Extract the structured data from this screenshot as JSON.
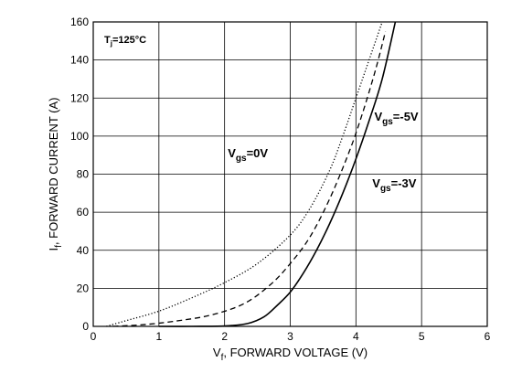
{
  "chart_data": {
    "type": "line",
    "xlabel": {
      "main": "V",
      "sub": "f",
      "rest": ", FORWARD VOLTAGE (V)"
    },
    "ylabel": {
      "main": "I",
      "sub": "f",
      "rest": ", FORWARD CURRENT (A)"
    },
    "xlim": [
      0,
      6
    ],
    "ylim": [
      0,
      160
    ],
    "xticks": [
      0,
      1,
      2,
      3,
      4,
      5,
      6
    ],
    "yticks": [
      0,
      20,
      40,
      60,
      80,
      100,
      120,
      140,
      160
    ],
    "grid": true,
    "condition": {
      "main": "T",
      "sub": "j",
      "rest": "=125°C"
    },
    "series": [
      {
        "name": "Vgs=0V",
        "style": "dotted",
        "x": [
          0.2,
          0.5,
          1.0,
          1.5,
          2.0,
          2.5,
          3.0,
          3.3,
          3.6,
          3.8,
          4.0,
          4.2,
          4.4
        ],
        "y": [
          0,
          3,
          8,
          15,
          23,
          33,
          48,
          62,
          82,
          100,
          120,
          140,
          160
        ]
      },
      {
        "name": "Vgs=-5V",
        "style": "dashed",
        "x": [
          0.3,
          0.8,
          1.3,
          1.8,
          2.3,
          2.7,
          3.0,
          3.3,
          3.6,
          3.9,
          4.1,
          4.3,
          4.45
        ],
        "y": [
          0,
          1,
          3,
          6,
          12,
          22,
          33,
          47,
          67,
          92,
          112,
          135,
          155
        ]
      },
      {
        "name": "Vgs=-3V",
        "style": "solid",
        "x": [
          1.0,
          1.5,
          2.0,
          2.35,
          2.6,
          2.8,
          3.0,
          3.2,
          3.4,
          3.6,
          3.8,
          4.0,
          4.2,
          4.4,
          4.6
        ],
        "y": [
          0,
          0,
          0.2,
          1.5,
          5,
          11,
          18,
          28,
          40,
          54,
          70,
          88,
          108,
          130,
          160
        ]
      }
    ],
    "annotations": [
      {
        "main": "V",
        "sub": "gs",
        "rest": "=0V",
        "x": 2.05,
        "y": 89
      },
      {
        "main": "V",
        "sub": "gs",
        "rest": "=-5V",
        "x": 4.28,
        "y": 108
      },
      {
        "main": "V",
        "sub": "gs",
        "rest": "=-3V",
        "x": 4.25,
        "y": 73
      }
    ]
  }
}
